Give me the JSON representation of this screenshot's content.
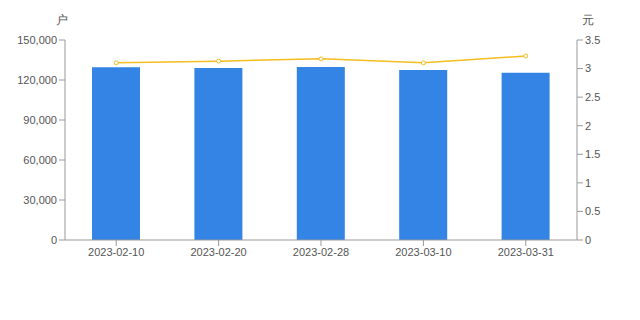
{
  "chart_data": {
    "type": "bar",
    "y_label": "户",
    "y2_label": "元",
    "categories": [
      "2023-02-10",
      "2023-02-20",
      "2023-02-28",
      "2023-03-10",
      "2023-03-31"
    ],
    "series": [
      {
        "type": "bar",
        "color": "#3384e5",
        "values": [
          129500,
          129000,
          129700,
          127500,
          125500
        ]
      },
      {
        "type": "line",
        "color": "#f5bd1f",
        "axis": "y2",
        "marker": "circle",
        "values": [
          3.1,
          3.13,
          3.17,
          3.1,
          3.22
        ]
      }
    ],
    "ylim": [
      0,
      150000
    ],
    "yticks": [
      0,
      {
        "value": 30000,
        "label": "30,000"
      },
      {
        "value": 60000,
        "label": "60,000"
      },
      {
        "value": 90000,
        "label": "90,000"
      },
      {
        "value": 120000,
        "label": "120,000"
      },
      {
        "value": 150000,
        "label": "150,000"
      }
    ],
    "y2lim": [
      0,
      3.5
    ],
    "y2ticks": [
      0,
      0.5,
      1,
      1.5,
      2,
      2.5,
      3,
      3.5
    ],
    "grid": false
  }
}
